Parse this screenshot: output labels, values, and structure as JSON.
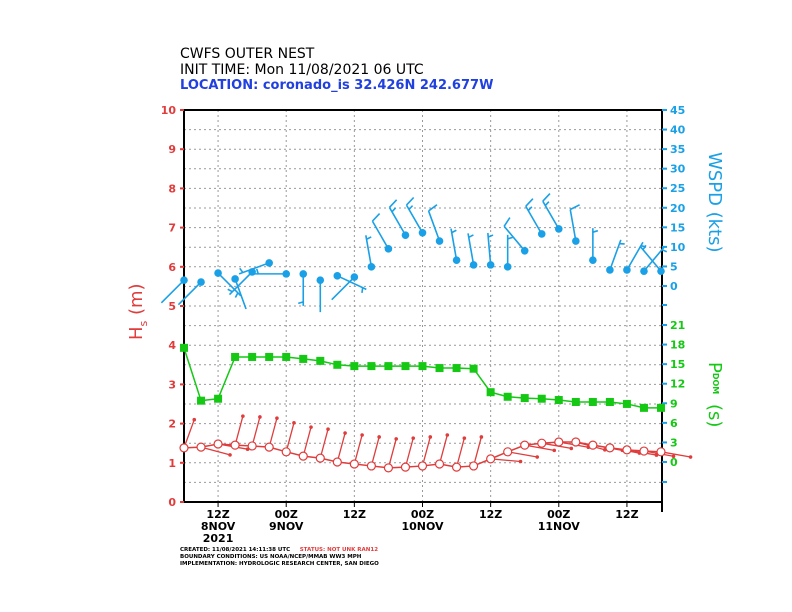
{
  "header": {
    "line1": "CWFS OUTER NEST",
    "line2": "INIT TIME: Mon 11/08/2021 06 UTC",
    "line3": "LOCATION: coronado_is 32.426N 242.677W"
  },
  "footer": {
    "created": "CREATED: 11/08/2021 14:11:38 UTC",
    "status": "STATUS: NOT UNK RAN12",
    "boundary": "BOUNDARY CONDITIONS: US NOAA/NCEP/MMAB WW3 MPH",
    "implementation": "IMPLEMENTATION: HYDROLOGIC RESEARCH CENTER, SAN DIEGO"
  },
  "colors": {
    "hs": "#e03c3c",
    "wspd": "#1aa0e6",
    "pdom": "#14c814",
    "location": "#2040e0",
    "status": "#e03c3c"
  },
  "chart_data": {
    "type": "line",
    "x": [
      "11/08 06Z",
      "11/08 09Z",
      "11/08 12Z",
      "11/08 15Z",
      "11/08 18Z",
      "11/08 21Z",
      "11/09 00Z",
      "11/09 03Z",
      "11/09 06Z",
      "11/09 09Z",
      "11/09 12Z",
      "11/09 15Z",
      "11/09 18Z",
      "11/09 21Z",
      "11/10 00Z",
      "11/10 03Z",
      "11/10 06Z",
      "11/10 09Z",
      "11/10 12Z",
      "11/10 15Z",
      "11/10 18Z",
      "11/10 21Z",
      "11/11 00Z",
      "11/11 03Z",
      "11/11 06Z",
      "11/11 09Z",
      "11/11 12Z",
      "11/11 15Z",
      "11/11 18Z"
    ],
    "xticks": [
      {
        "index": 2,
        "label1": "12Z",
        "label2": "8NOV",
        "label3": "2021"
      },
      {
        "index": 6,
        "label1": "00Z",
        "label2": "9NOV",
        "label3": ""
      },
      {
        "index": 10,
        "label1": "12Z",
        "label2": "",
        "label3": ""
      },
      {
        "index": 14,
        "label1": "00Z",
        "label2": "10NOV",
        "label3": ""
      },
      {
        "index": 18,
        "label1": "12Z",
        "label2": "",
        "label3": ""
      },
      {
        "index": 22,
        "label1": "00Z",
        "label2": "11NOV",
        "label3": ""
      },
      {
        "index": 26,
        "label1": "12Z",
        "label2": "",
        "label3": ""
      }
    ],
    "grid": true,
    "axes": {
      "left": {
        "label": "H",
        "label_sub": "s",
        "label_unit": "(m)",
        "ylim": [
          0,
          10
        ],
        "ticks": [
          "0",
          "1",
          "2",
          "3",
          "4",
          "5",
          "6",
          "7",
          "8",
          "9",
          "10"
        ]
      },
      "right_top": {
        "label": "WSPD (kts)",
        "ylim": [
          0,
          45
        ],
        "ticks": [
          "0",
          "5",
          "10",
          "15",
          "20",
          "25",
          "30",
          "35",
          "40",
          "45"
        ]
      },
      "right_bottom": {
        "label": "P",
        "label_sub": "DOM",
        "label_unit": "(s)",
        "ylim": [
          0,
          21
        ],
        "ticks": [
          "0",
          "3",
          "6",
          "9",
          "12",
          "15",
          "18",
          "21"
        ]
      }
    },
    "series": [
      {
        "key": "hs",
        "unit": "m",
        "values": [
          1.38,
          1.4,
          1.48,
          1.45,
          1.43,
          1.4,
          1.28,
          1.17,
          1.12,
          1.02,
          0.97,
          0.92,
          0.87,
          0.89,
          0.92,
          0.97,
          0.89,
          0.92,
          1.1,
          1.28,
          1.45,
          1.5,
          1.53,
          1.53,
          1.45,
          1.38,
          1.33,
          1.3,
          1.28
        ],
        "wave_dir_toward_deg": [
          20,
          105,
          100,
          15,
          15,
          15,
          15,
          15,
          15,
          15,
          15,
          15,
          15,
          15,
          15,
          15,
          15,
          15,
          95,
          100,
          100,
          100,
          100,
          105,
          100,
          100,
          100,
          100,
          100
        ]
      },
      {
        "key": "wspd",
        "unit": "kts",
        "values": [
          1.5,
          1,
          3.3,
          1.8,
          3.6,
          5.9,
          3.1,
          3.1,
          1.5,
          2.6,
          2.3,
          4.9,
          9.5,
          13,
          13.6,
          11.5,
          6.6,
          5.4,
          5.4,
          4.9,
          9,
          13.3,
          14.6,
          11.5,
          6.6,
          4.1,
          4.1,
          3.8,
          3.8
        ],
        "wind_dir_from_deg": [
          225,
          225,
          135,
          160,
          225,
          250,
          270,
          180,
          180,
          115,
          225,
          350,
          330,
          330,
          330,
          340,
          350,
          350,
          355,
          0,
          320,
          330,
          330,
          350,
          0,
          20,
          30,
          40,
          320
        ]
      },
      {
        "key": "pdom",
        "unit": "s",
        "values": [
          17.5,
          9.4,
          9.7,
          16.1,
          16.1,
          16.1,
          16.1,
          15.8,
          15.5,
          14.9,
          14.7,
          14.7,
          14.7,
          14.7,
          14.7,
          14.4,
          14.4,
          14.3,
          10.7,
          10.0,
          9.8,
          9.7,
          9.5,
          9.2,
          9.2,
          9.2,
          8.9,
          8.3,
          8.3
        ]
      }
    ]
  }
}
